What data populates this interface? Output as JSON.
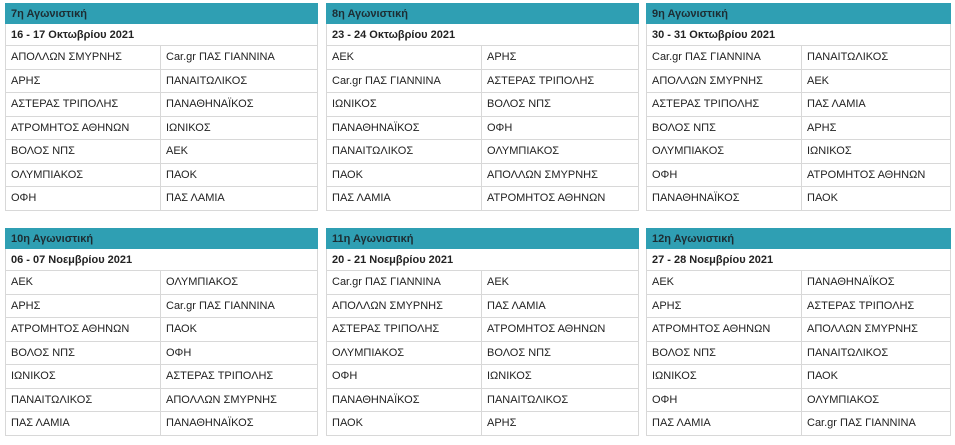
{
  "rounds": [
    {
      "title": "7η Αγωνιστική",
      "dates": "16 - 17 Οκτωβρίου 2021",
      "matches": [
        [
          "ΑΠΟΛΛΩΝ ΣΜΥΡΝΗΣ",
          "Car.gr ΠΑΣ ΓΙΑΝΝΙΝΑ"
        ],
        [
          "ΑΡΗΣ",
          "ΠΑΝΑΙΤΩΛΙΚΟΣ"
        ],
        [
          "ΑΣΤΕΡΑΣ ΤΡΙΠΟΛΗΣ",
          "ΠΑΝΑΘΗΝΑΪΚΟΣ"
        ],
        [
          "ΑΤΡΟΜΗΤΟΣ ΑΘΗΝΩΝ",
          "ΙΩΝΙΚΟΣ"
        ],
        [
          "ΒΟΛΟΣ ΝΠΣ",
          "ΑΕΚ"
        ],
        [
          "ΟΛΥΜΠΙΑΚΟΣ",
          "ΠΑΟΚ"
        ],
        [
          "ΟΦΗ",
          "ΠΑΣ ΛΑΜΙΑ"
        ]
      ]
    },
    {
      "title": "8η Αγωνιστική",
      "dates": "23 - 24 Οκτωβρίου 2021",
      "matches": [
        [
          "ΑΕΚ",
          "ΑΡΗΣ"
        ],
        [
          "Car.gr ΠΑΣ ΓΙΑΝΝΙΝΑ",
          "ΑΣΤΕΡΑΣ ΤΡΙΠΟΛΗΣ"
        ],
        [
          "ΙΩΝΙΚΟΣ",
          "ΒΟΛΟΣ ΝΠΣ"
        ],
        [
          "ΠΑΝΑΘΗΝΑΪΚΟΣ",
          "ΟΦΗ"
        ],
        [
          "ΠΑΝΑΙΤΩΛΙΚΟΣ",
          "ΟΛΥΜΠΙΑΚΟΣ"
        ],
        [
          "ΠΑΟΚ",
          "ΑΠΟΛΛΩΝ ΣΜΥΡΝΗΣ"
        ],
        [
          "ΠΑΣ ΛΑΜΙΑ",
          "ΑΤΡΟΜΗΤΟΣ ΑΘΗΝΩΝ"
        ]
      ]
    },
    {
      "title": "9η Αγωνιστική",
      "dates": "30 - 31 Οκτωβρίου 2021",
      "matches": [
        [
          "Car.gr ΠΑΣ ΓΙΑΝΝΙΝΑ",
          "ΠΑΝΑΙΤΩΛΙΚΟΣ"
        ],
        [
          "ΑΠΟΛΛΩΝ ΣΜΥΡΝΗΣ",
          "ΑΕΚ"
        ],
        [
          "ΑΣΤΕΡΑΣ ΤΡΙΠΟΛΗΣ",
          "ΠΑΣ ΛΑΜΙΑ"
        ],
        [
          "ΒΟΛΟΣ ΝΠΣ",
          "ΑΡΗΣ"
        ],
        [
          "ΟΛΥΜΠΙΑΚΟΣ",
          "ΙΩΝΙΚΟΣ"
        ],
        [
          "ΟΦΗ",
          "ΑΤΡΟΜΗΤΟΣ ΑΘΗΝΩΝ"
        ],
        [
          "ΠΑΝΑΘΗΝΑΪΚΟΣ",
          "ΠΑΟΚ"
        ]
      ]
    },
    {
      "title": "10η Αγωνιστική",
      "dates": "06 - 07 Νοεμβρίου 2021",
      "matches": [
        [
          "ΑΕΚ",
          "ΟΛΥΜΠΙΑΚΟΣ"
        ],
        [
          "ΑΡΗΣ",
          "Car.gr ΠΑΣ ΓΙΑΝΝΙΝΑ"
        ],
        [
          "ΑΤΡΟΜΗΤΟΣ ΑΘΗΝΩΝ",
          "ΠΑΟΚ"
        ],
        [
          "ΒΟΛΟΣ ΝΠΣ",
          "ΟΦΗ"
        ],
        [
          "ΙΩΝΙΚΟΣ",
          "ΑΣΤΕΡΑΣ ΤΡΙΠΟΛΗΣ"
        ],
        [
          "ΠΑΝΑΙΤΩΛΙΚΟΣ",
          "ΑΠΟΛΛΩΝ ΣΜΥΡΝΗΣ"
        ],
        [
          "ΠΑΣ ΛΑΜΙΑ",
          "ΠΑΝΑΘΗΝΑΪΚΟΣ"
        ]
      ]
    },
    {
      "title": "11η Αγωνιστική",
      "dates": "20 - 21 Νοεμβρίου 2021",
      "matches": [
        [
          "Car.gr ΠΑΣ ΓΙΑΝΝΙΝΑ",
          "ΑΕΚ"
        ],
        [
          "ΑΠΟΛΛΩΝ ΣΜΥΡΝΗΣ",
          "ΠΑΣ ΛΑΜΙΑ"
        ],
        [
          "ΑΣΤΕΡΑΣ ΤΡΙΠΟΛΗΣ",
          "ΑΤΡΟΜΗΤΟΣ ΑΘΗΝΩΝ"
        ],
        [
          "ΟΛΥΜΠΙΑΚΟΣ",
          "ΒΟΛΟΣ ΝΠΣ"
        ],
        [
          "ΟΦΗ",
          "ΙΩΝΙΚΟΣ"
        ],
        [
          "ΠΑΝΑΘΗΝΑΪΚΟΣ",
          "ΠΑΝΑΙΤΩΛΙΚΟΣ"
        ],
        [
          "ΠΑΟΚ",
          "ΑΡΗΣ"
        ]
      ]
    },
    {
      "title": "12η Αγωνιστική",
      "dates": "27 - 28 Νοεμβρίου 2021",
      "matches": [
        [
          "ΑΕΚ",
          "ΠΑΝΑΘΗΝΑΪΚΟΣ"
        ],
        [
          "ΑΡΗΣ",
          "ΑΣΤΕΡΑΣ ΤΡΙΠΟΛΗΣ"
        ],
        [
          "ΑΤΡΟΜΗΤΟΣ ΑΘΗΝΩΝ",
          "ΑΠΟΛΛΩΝ ΣΜΥΡΝΗΣ"
        ],
        [
          "ΒΟΛΟΣ ΝΠΣ",
          "ΠΑΝΑΙΤΩΛΙΚΟΣ"
        ],
        [
          "ΙΩΝΙΚΟΣ",
          "ΠΑΟΚ"
        ],
        [
          "ΟΦΗ",
          "ΟΛΥΜΠΙΑΚΟΣ"
        ],
        [
          "ΠΑΣ ΛΑΜΙΑ",
          "Car.gr ΠΑΣ ΓΙΑΝΝΙΝΑ"
        ]
      ]
    }
  ]
}
